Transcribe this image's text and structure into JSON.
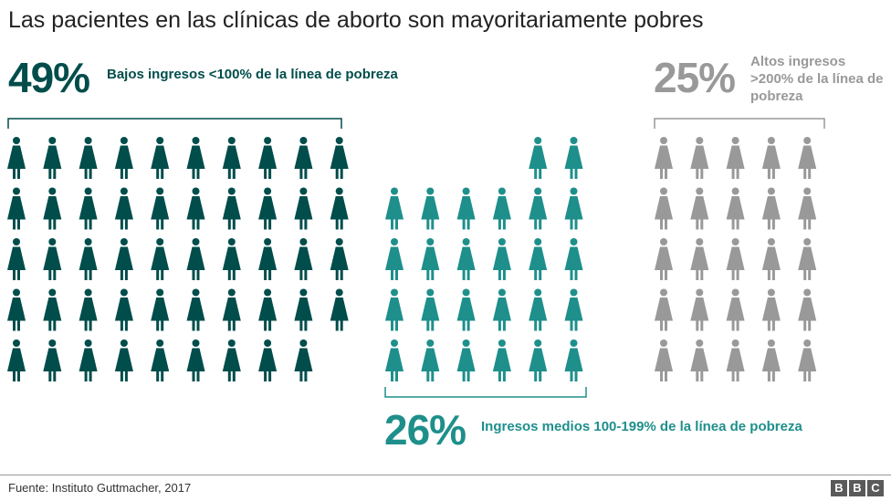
{
  "title": "Las pacientes en las clínicas de aborto son mayoritariamente pobres",
  "source": "Fuente: Instituto Guttmacher, 2017",
  "logo": [
    "B",
    "B",
    "C"
  ],
  "colors": {
    "low": "#004d4b",
    "middle": "#1e8f8b",
    "high": "#999999"
  },
  "icon": "woman-icon",
  "chart_data": {
    "type": "pictograph",
    "unit": "%",
    "groups": [
      {
        "key": "low",
        "value": 49,
        "percent_label": "49%",
        "label": "Bajos ingresos <100% de la línea de pobreza"
      },
      {
        "key": "middle",
        "value": 26,
        "percent_label": "26%",
        "label": "Ingresos medios 100-199% de la línea de pobreza"
      },
      {
        "key": "high",
        "value": 25,
        "percent_label": "25%",
        "label": "Altos ingresos >200% de la línea de pobreza"
      }
    ]
  }
}
